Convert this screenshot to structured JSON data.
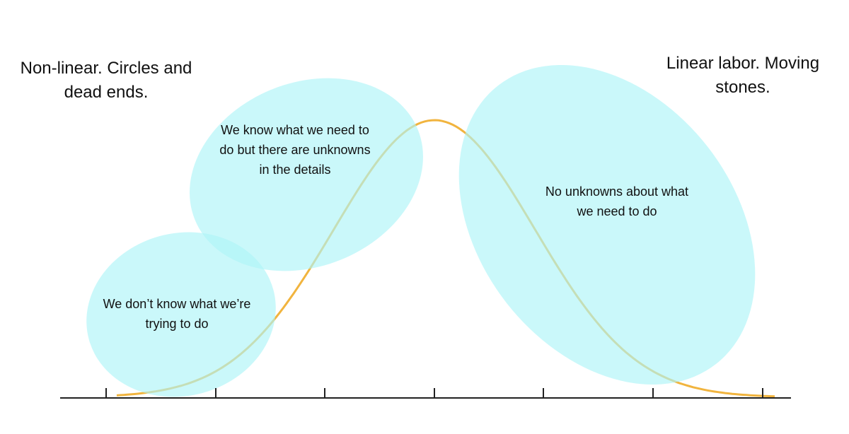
{
  "notes": {
    "left": "Non-linear. Circles and dead ends.",
    "right": "Linear labor. Moving stones."
  },
  "regions": [
    {
      "label": "We don’t know what we’re trying to do"
    },
    {
      "label": "We know what we need to do but there are unknowns in the details"
    },
    {
      "label": "No unknowns about what we need to do"
    }
  ]
}
